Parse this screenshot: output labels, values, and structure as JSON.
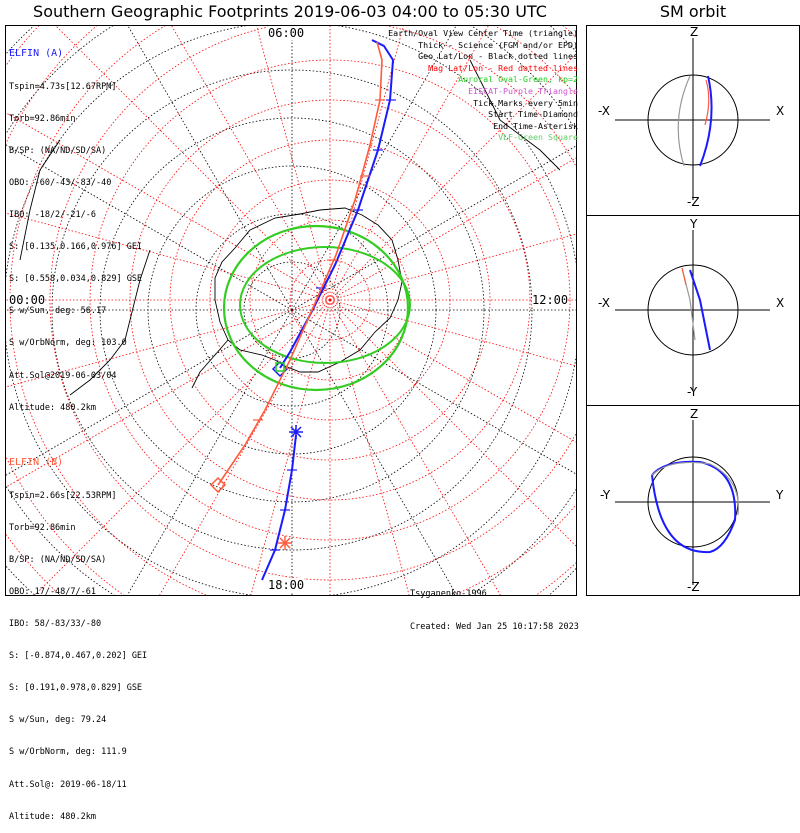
{
  "title": "Southern Geographic Footprints 2019-06-03 04:00 to 05:30 UTC",
  "sm_title": "SM orbit",
  "time_labels": {
    "top": "06:00",
    "left": "00:00",
    "right": "12:00",
    "bottom": "18:00"
  },
  "elfin_a": {
    "name": "ELFIN (A)",
    "lines": [
      "Tspin=4.73s[12.67RPM]",
      "Torb=92.86min",
      "B/SP: (NA/ND/SD/SA)",
      "OBO: -60/-43/-83/-40",
      "IBO: -18/2/-21/-6",
      "S: [0.135,0.166,0.976] GEI",
      "S: [0.558,0.034,0.829] GSE",
      "S w/Sun, deg: 56.17",
      "S w/OrbNorm, deg: 103.0",
      "Att.Sol@2019-06-03/04",
      "Altitude: 480.2km"
    ]
  },
  "elfin_b": {
    "name": "ELFIN (B)",
    "lines": [
      "Tspin=2.66s[22.53RPM]",
      "Torb=92.86min",
      "B/SP: (NA/ND/SD/SA)",
      "OBO: 17/-48/7/-61",
      "IBO: 58/-83/33/-80",
      "S: [-0.874,0.467,0.202] GEI",
      "S: [0.191,0.978,0.829] GSE",
      "S w/Sun, deg: 79.24",
      "S w/OrbNorm, deg: 111.9",
      "Att.Sol@: 2019-06-18/11",
      "Altitude: 480.2km"
    ]
  },
  "legend": [
    {
      "text": "Earth/Oval View Center Time (triangle)",
      "color": "#000000"
    },
    {
      "text": "Thick - Science (FGM and/or EPD)",
      "color": "#000000"
    },
    {
      "text": "Geo Lat/Lon - Black dotted lines",
      "color": "#000000"
    },
    {
      "text": "Mag Lat/Lon - Red dotted lines",
      "color": "#ff0000"
    },
    {
      "text": "Auroral Oval-Green, kp=2",
      "color": "#22cc22"
    },
    {
      "text": "EISCAT-Purple Triangle",
      "color": "#cc55cc"
    },
    {
      "text": "Tick Marks every 5min",
      "color": "#000000"
    },
    {
      "text": "Start Time-Diamond",
      "color": "#000000"
    },
    {
      "text": "End Time-Asterisk",
      "color": "#000000"
    },
    {
      "text": "VLF-Green Square",
      "color": "#66cc66"
    }
  ],
  "credits": [
    "Tsyganenko-1996",
    "Created: Wed Jan 25 10:17:58 2023"
  ],
  "sm_panels": [
    {
      "top": "Z",
      "bottom": "-Z",
      "left": "-X",
      "right": "X"
    },
    {
      "top": "Y",
      "bottom": "-Y",
      "left": "-X",
      "right": "X"
    },
    {
      "top": "Z",
      "bottom": "-Z",
      "left": "-Y",
      "right": "Y"
    }
  ],
  "colors": {
    "elfin_a": "#1a1aff",
    "elfin_b": "#ff5a3a",
    "oval": "#33cc22",
    "mag_grid": "#ff0000"
  }
}
